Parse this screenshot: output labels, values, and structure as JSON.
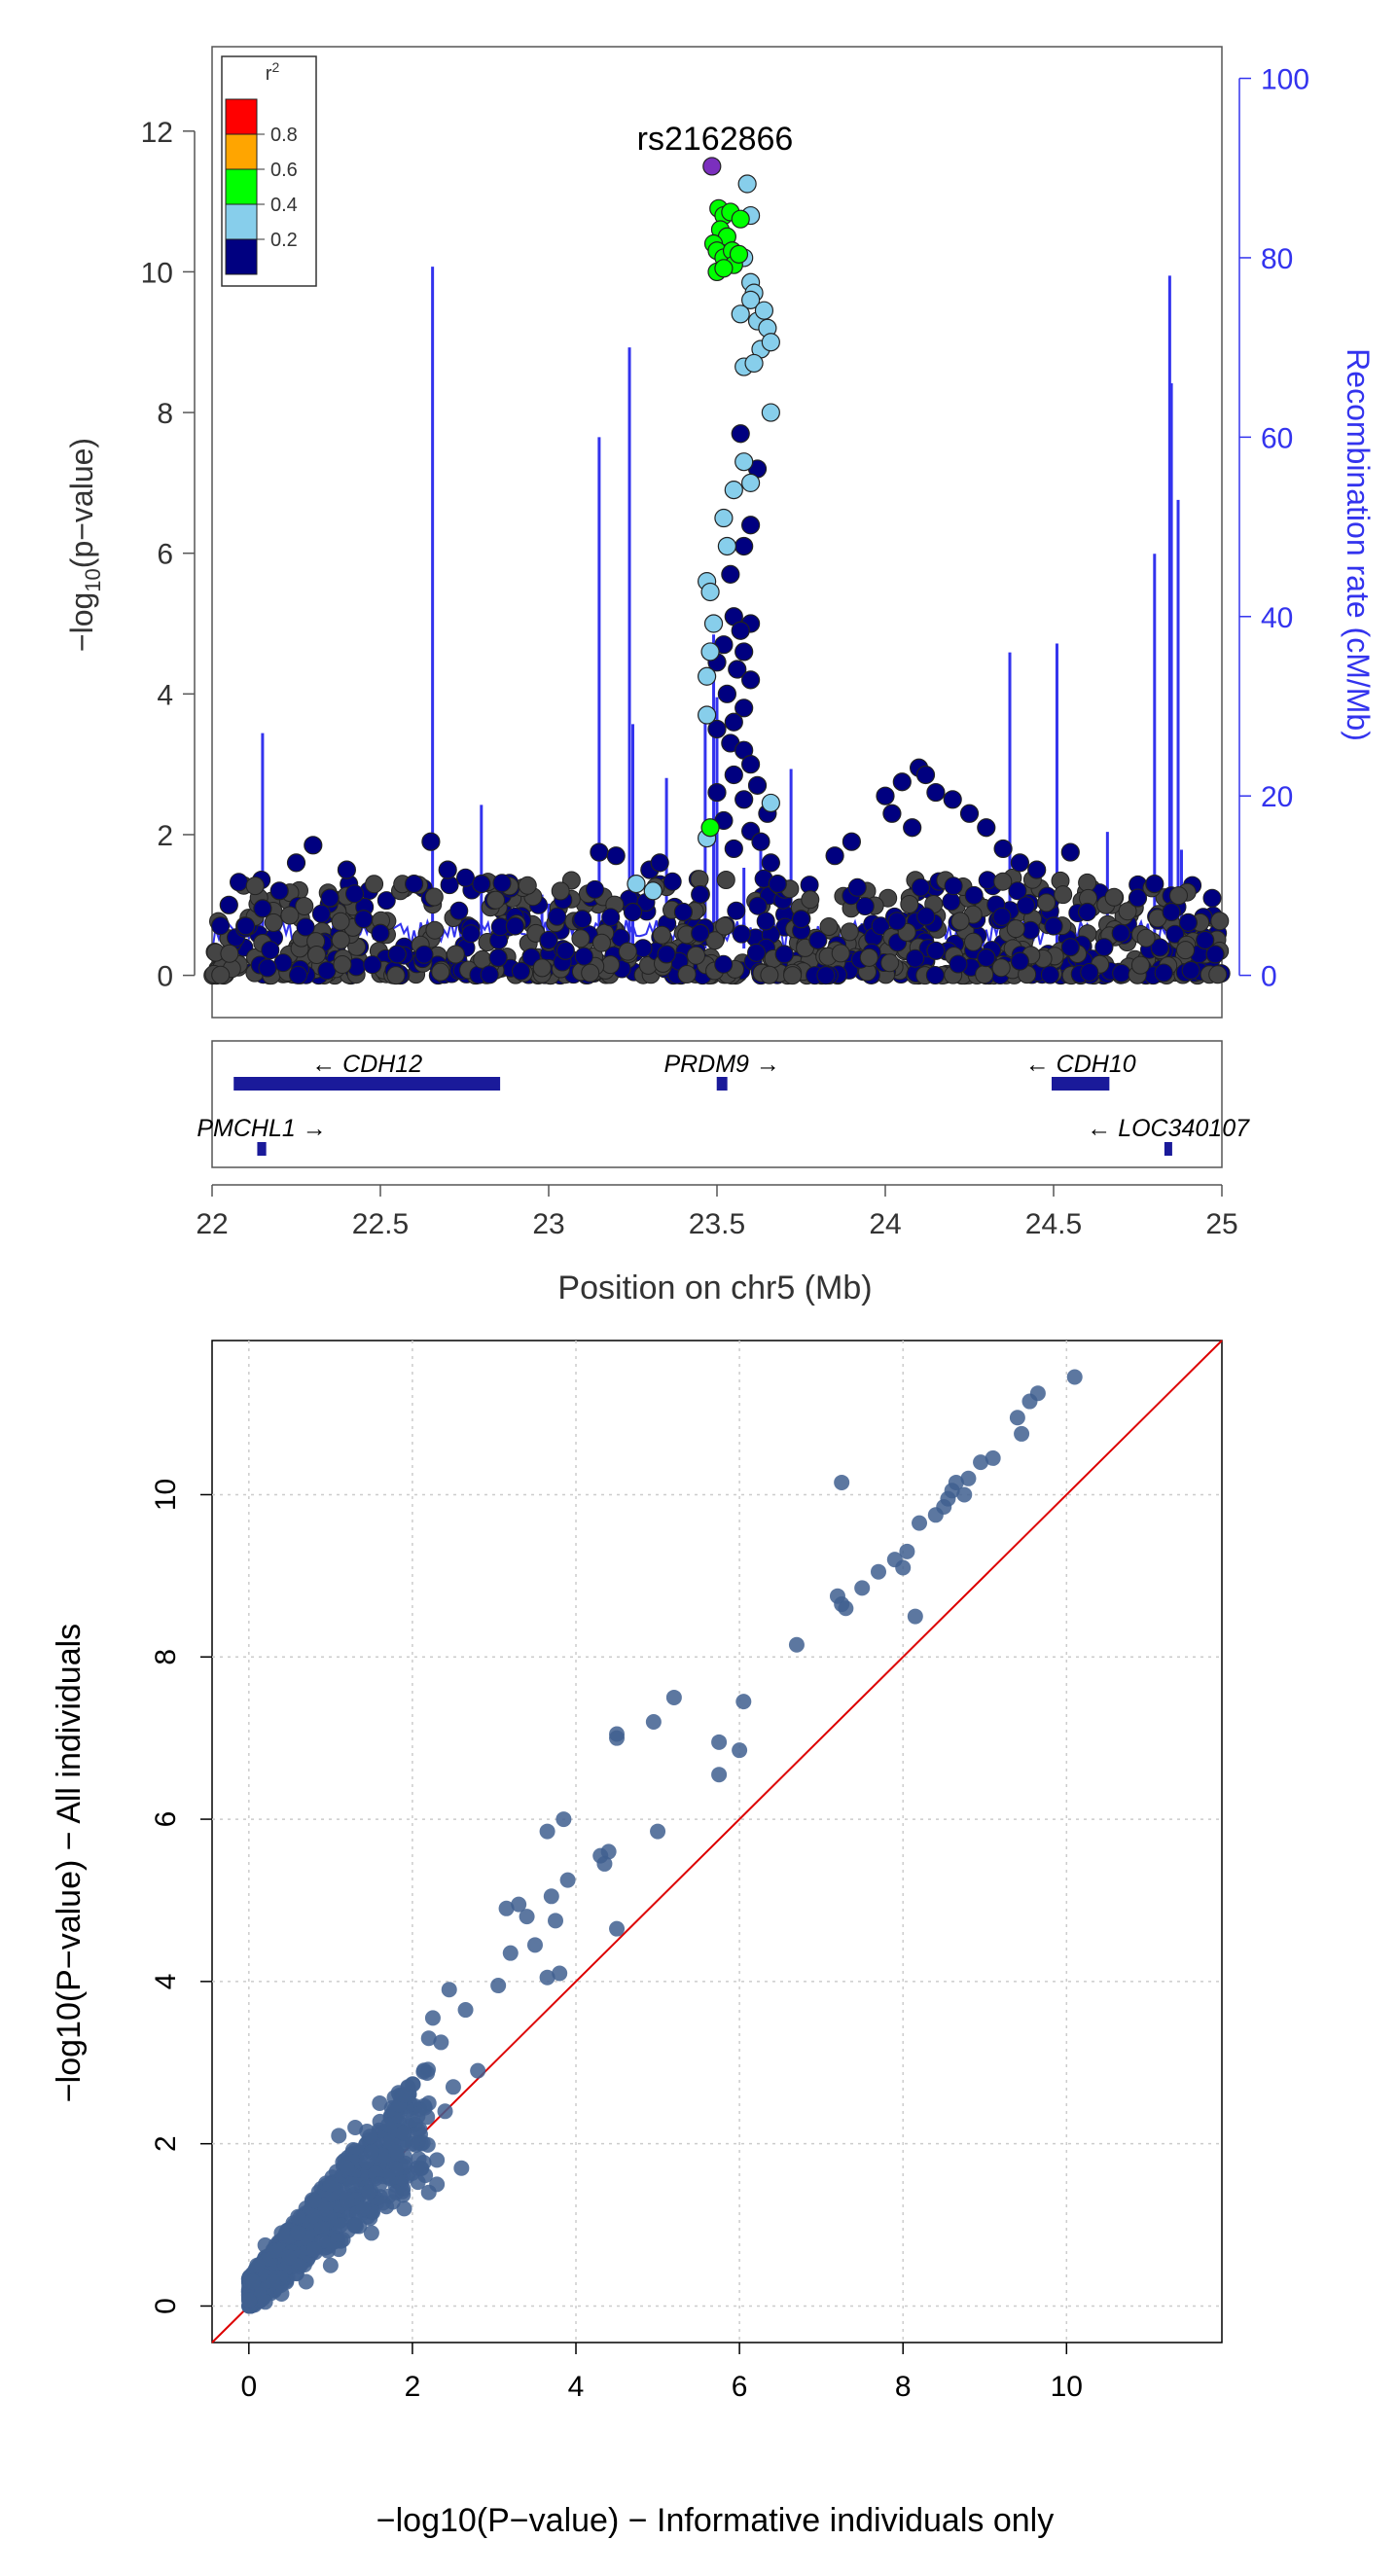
{
  "chart_data": [
    {
      "type": "scatter",
      "title": "",
      "annotation": "rs2162866",
      "xlabel": "Position on chr5 (Mb)",
      "ylabel_base": "−log",
      "ylabel_sub": "10",
      "ylabel_rest": "(p−value)",
      "y2label": "Recombination rate (cM/Mb)",
      "xlim": [
        22,
        25
      ],
      "ylim": [
        -0.6,
        13.2
      ],
      "y2lim": [
        0,
        100
      ],
      "xticks": [
        22,
        22.5,
        23,
        23.5,
        24,
        24.5,
        25
      ],
      "xtick_labels": [
        "22",
        "22.5",
        "23",
        "23.5",
        "24",
        "24.5",
        "25"
      ],
      "yticks": [
        0,
        2,
        4,
        6,
        8,
        10,
        12
      ],
      "ytick_labels": [
        "0",
        "2",
        "4",
        "6",
        "8",
        "10",
        "12"
      ],
      "y2ticks": [
        0,
        20,
        40,
        60,
        80,
        100
      ],
      "y2tick_labels": [
        "0",
        "20",
        "40",
        "60",
        "80",
        "100"
      ],
      "legend": {
        "title": "r",
        "title_sup": "2",
        "position": "top-left",
        "labels": [
          "0.8",
          "0.6",
          "0.4",
          "0.2"
        ],
        "colors": [
          "#ff0000",
          "#ffa500",
          "#00ff00",
          "#87ceeb",
          "#000080"
        ]
      },
      "colors": {
        "lead": "#7b2fbe",
        "r2_high": "#00ff00",
        "r2_mid": "#87ceeb",
        "r2_low": "#000080",
        "recomb": "#3333ee"
      },
      "lead_snp": {
        "x": 23.485,
        "y": 11.5
      },
      "series": [
        {
          "r2": "0.4-0.6",
          "points": [
            [
              23.505,
              10.9
            ],
            [
              23.52,
              10.8
            ],
            [
              23.54,
              10.85
            ],
            [
              23.51,
              10.6
            ],
            [
              23.53,
              10.5
            ],
            [
              23.49,
              10.4
            ],
            [
              23.5,
              10.3
            ],
            [
              23.52,
              10.2
            ],
            [
              23.545,
              10.3
            ],
            [
              23.55,
              10.1
            ],
            [
              23.5,
              10.0
            ],
            [
              23.52,
              10.05
            ],
            [
              23.565,
              10.25
            ],
            [
              23.57,
              10.75
            ],
            [
              23.48,
              2.1
            ]
          ]
        },
        {
          "r2": "0.2-0.4",
          "points": [
            [
              23.59,
              11.25
            ],
            [
              23.6,
              10.8
            ],
            [
              23.58,
              10.2
            ],
            [
              23.6,
              9.85
            ],
            [
              23.61,
              9.7
            ],
            [
              23.6,
              9.6
            ],
            [
              23.62,
              9.3
            ],
            [
              23.64,
              9.45
            ],
            [
              23.57,
              9.4
            ],
            [
              23.65,
              9.2
            ],
            [
              23.63,
              8.9
            ],
            [
              23.66,
              9.0
            ],
            [
              23.58,
              8.65
            ],
            [
              23.61,
              8.7
            ],
            [
              23.66,
              8.0
            ],
            [
              23.58,
              7.3
            ],
            [
              23.6,
              7.0
            ],
            [
              23.55,
              6.9
            ],
            [
              23.52,
              6.5
            ],
            [
              23.53,
              6.1
            ],
            [
              23.47,
              5.6
            ],
            [
              23.48,
              5.45
            ],
            [
              23.49,
              5.0
            ],
            [
              23.48,
              4.6
            ],
            [
              23.47,
              4.25
            ],
            [
              23.47,
              3.7
            ],
            [
              23.47,
              1.95
            ],
            [
              23.66,
              2.45
            ],
            [
              23.26,
              1.3
            ],
            [
              23.31,
              1.2
            ]
          ]
        },
        {
          "r2": "0-0.2",
          "points": [
            [
              23.57,
              7.7
            ],
            [
              23.62,
              7.2
            ],
            [
              23.6,
              6.4
            ],
            [
              23.58,
              6.1
            ],
            [
              23.54,
              5.7
            ],
            [
              23.55,
              5.1
            ],
            [
              23.6,
              5.0
            ],
            [
              23.57,
              4.9
            ],
            [
              23.58,
              4.6
            ],
            [
              23.52,
              4.7
            ],
            [
              23.5,
              4.45
            ],
            [
              23.56,
              4.35
            ],
            [
              23.6,
              4.2
            ],
            [
              23.53,
              4.0
            ],
            [
              23.58,
              3.8
            ],
            [
              23.55,
              3.6
            ],
            [
              23.5,
              3.5
            ],
            [
              23.54,
              3.3
            ],
            [
              23.58,
              3.2
            ],
            [
              23.6,
              3.0
            ],
            [
              23.55,
              2.85
            ],
            [
              23.62,
              2.7
            ],
            [
              23.5,
              2.6
            ],
            [
              23.58,
              2.5
            ],
            [
              23.65,
              2.3
            ],
            [
              23.52,
              2.2
            ],
            [
              23.6,
              2.05
            ],
            [
              23.63,
              1.9
            ],
            [
              23.55,
              1.8
            ],
            [
              23.66,
              1.6
            ],
            [
              23.68,
              1.3
            ],
            [
              23.45,
              1.15
            ],
            [
              23.4,
              0.9
            ],
            [
              23.45,
              0.6
            ],
            [
              24.0,
              2.55
            ],
            [
              24.05,
              2.75
            ],
            [
              24.1,
              2.95
            ],
            [
              24.12,
              2.85
            ],
            [
              24.15,
              2.6
            ],
            [
              24.2,
              2.5
            ],
            [
              24.25,
              2.3
            ],
            [
              24.3,
              2.1
            ],
            [
              24.02,
              2.3
            ],
            [
              24.08,
              2.1
            ],
            [
              23.9,
              1.9
            ],
            [
              23.85,
              1.7
            ],
            [
              24.35,
              1.8
            ],
            [
              24.4,
              1.6
            ],
            [
              24.45,
              1.5
            ],
            [
              24.55,
              1.75
            ],
            [
              22.3,
              1.85
            ],
            [
              22.4,
              1.5
            ],
            [
              22.25,
              1.6
            ],
            [
              22.2,
              1.2
            ],
            [
              22.35,
              1.1
            ],
            [
              22.6,
              1.3
            ],
            [
              22.7,
              1.5
            ],
            [
              22.65,
              1.9
            ],
            [
              22.8,
              1.3
            ],
            [
              22.15,
              0.95
            ],
            [
              22.1,
              0.7
            ],
            [
              22.05,
              1.0
            ],
            [
              23.15,
              1.75
            ],
            [
              23.2,
              1.7
            ],
            [
              23.3,
              1.5
            ],
            [
              23.33,
              1.6
            ],
            [
              24.75,
              1.1
            ],
            [
              24.8,
              1.3
            ],
            [
              24.85,
              0.9
            ],
            [
              24.9,
              0.75
            ],
            [
              24.95,
              0.5
            ],
            [
              24.98,
              0.3
            ],
            [
              24.7,
              0.6
            ],
            [
              24.65,
              0.4
            ],
            [
              22.45,
              0.8
            ],
            [
              22.5,
              0.6
            ],
            [
              22.9,
              0.7
            ],
            [
              23.0,
              0.5
            ],
            [
              23.1,
              0.8
            ],
            [
              23.25,
              0.9
            ],
            [
              23.75,
              0.8
            ],
            [
              23.8,
              0.5
            ],
            [
              24.6,
              0.9
            ],
            [
              24.5,
              0.7
            ],
            [
              22.55,
              0.3
            ],
            [
              22.85,
              0.25
            ],
            [
              23.05,
              0.35
            ],
            [
              23.35,
              0.3
            ],
            [
              23.7,
              0.3
            ],
            [
              24.15,
              0.35
            ],
            [
              24.3,
              0.25
            ],
            [
              24.4,
              0.2
            ],
            [
              24.55,
              0.4
            ]
          ]
        }
      ],
      "recomb_peaks": [
        [
          22.15,
          27
        ],
        [
          22.655,
          79
        ],
        [
          22.8,
          19
        ],
        [
          22.98,
          9
        ],
        [
          23.0,
          8
        ],
        [
          23.15,
          60
        ],
        [
          23.24,
          70
        ],
        [
          23.25,
          28
        ],
        [
          23.35,
          22
        ],
        [
          23.465,
          30
        ],
        [
          23.49,
          38
        ],
        [
          23.5,
          31
        ],
        [
          23.58,
          12
        ],
        [
          23.63,
          15
        ],
        [
          23.72,
          23
        ],
        [
          24.37,
          36
        ],
        [
          24.51,
          37
        ],
        [
          24.66,
          16
        ],
        [
          24.8,
          47
        ],
        [
          24.845,
          78
        ],
        [
          24.85,
          66
        ],
        [
          24.87,
          53
        ],
        [
          24.88,
          14
        ]
      ],
      "genes": [
        {
          "name": "CDH12",
          "arrow_left": "←",
          "arrow_right": "",
          "start": 22.07,
          "end": 22.85,
          "row": 0
        },
        {
          "name": "PRDM9",
          "arrow_left": "",
          "arrow_right": "→",
          "start": 23.505,
          "end": 23.525,
          "row": 0
        },
        {
          "name": "CDH10",
          "arrow_left": "←",
          "arrow_right": "",
          "start": 24.5,
          "end": 24.66,
          "row": 0
        },
        {
          "name": "PMCHL1",
          "arrow_left": "",
          "arrow_right": "→",
          "start": 22.14,
          "end": 22.155,
          "row": 1
        },
        {
          "name": "LOC340107",
          "arrow_left": "←",
          "arrow_right": "",
          "start": 24.835,
          "end": 24.845,
          "row": 1
        }
      ]
    },
    {
      "type": "scatter",
      "title": "",
      "xlabel": "−log10(P−value) − Informative individuals only",
      "ylabel": "−log10(P−value) − All individuals",
      "xlim": [
        -0.45,
        11.9
      ],
      "ylim": [
        -0.45,
        11.9
      ],
      "xticks": [
        0,
        2,
        4,
        6,
        8,
        10
      ],
      "xtick_labels": [
        "0",
        "2",
        "4",
        "6",
        "8",
        "10"
      ],
      "yticks": [
        0,
        2,
        4,
        6,
        8,
        10
      ],
      "ytick_labels": [
        "0",
        "2",
        "4",
        "6",
        "8",
        "10"
      ],
      "grid": true,
      "reference_line": {
        "slope": 1,
        "intercept": 0,
        "color": "#dd0000"
      },
      "point_color": "#3f5f8f",
      "points": [
        [
          10.1,
          11.45
        ],
        [
          9.65,
          11.25
        ],
        [
          9.55,
          11.15
        ],
        [
          9.4,
          10.95
        ],
        [
          9.45,
          10.75
        ],
        [
          9.1,
          10.45
        ],
        [
          8.95,
          10.4
        ],
        [
          8.8,
          10.2
        ],
        [
          8.65,
          10.15
        ],
        [
          8.6,
          10.05
        ],
        [
          8.75,
          10.0
        ],
        [
          8.5,
          9.85
        ],
        [
          8.4,
          9.75
        ],
        [
          8.55,
          9.95
        ],
        [
          8.2,
          9.65
        ],
        [
          8.05,
          9.3
        ],
        [
          7.9,
          9.2
        ],
        [
          8.0,
          9.1
        ],
        [
          7.7,
          9.05
        ],
        [
          7.5,
          8.85
        ],
        [
          7.2,
          8.75
        ],
        [
          7.3,
          8.6
        ],
        [
          7.25,
          8.65
        ],
        [
          8.15,
          8.5
        ],
        [
          7.25,
          10.15
        ],
        [
          6.7,
          8.15
        ],
        [
          6.05,
          7.45
        ],
        [
          5.2,
          7.5
        ],
        [
          4.95,
          7.2
        ],
        [
          4.5,
          7.05
        ],
        [
          4.5,
          7.0
        ],
        [
          5.75,
          6.95
        ],
        [
          6.0,
          6.85
        ],
        [
          5.75,
          6.55
        ],
        [
          3.85,
          6.0
        ],
        [
          3.65,
          5.85
        ],
        [
          5.0,
          5.85
        ],
        [
          4.4,
          5.6
        ],
        [
          4.3,
          5.55
        ],
        [
          4.35,
          5.45
        ],
        [
          3.9,
          5.25
        ],
        [
          3.7,
          5.05
        ],
        [
          3.3,
          4.95
        ],
        [
          3.15,
          4.9
        ],
        [
          3.4,
          4.8
        ],
        [
          3.75,
          4.75
        ],
        [
          4.5,
          4.65
        ],
        [
          3.5,
          4.45
        ],
        [
          3.2,
          4.35
        ],
        [
          3.8,
          4.1
        ],
        [
          3.65,
          4.05
        ],
        [
          3.05,
          3.95
        ],
        [
          2.45,
          3.9
        ],
        [
          2.65,
          3.65
        ],
        [
          2.25,
          3.55
        ],
        [
          2.2,
          3.3
        ],
        [
          2.35,
          3.25
        ],
        [
          2.8,
          2.9
        ],
        [
          2.5,
          2.7
        ],
        [
          2.2,
          2.5
        ],
        [
          2.4,
          2.4
        ],
        [
          1.9,
          2.6
        ],
        [
          2.0,
          2.3
        ],
        [
          1.6,
          2.5
        ],
        [
          1.3,
          2.2
        ],
        [
          1.1,
          2.1
        ],
        [
          1.5,
          1.9
        ],
        [
          1.2,
          1.7
        ],
        [
          1.7,
          1.6
        ],
        [
          2.3,
          1.8
        ],
        [
          1.0,
          1.5
        ],
        [
          0.8,
          1.3
        ],
        [
          0.6,
          1.1
        ],
        [
          0.4,
          0.9
        ],
        [
          0.2,
          0.75
        ],
        [
          0.1,
          0.5
        ],
        [
          0.05,
          0.3
        ],
        [
          0.5,
          0.6
        ],
        [
          0.9,
          0.8
        ],
        [
          1.3,
          1.0
        ],
        [
          1.8,
          1.4
        ],
        [
          2.3,
          1.5
        ],
        [
          2.6,
          1.7
        ],
        [
          2.2,
          1.4
        ],
        [
          1.9,
          1.2
        ],
        [
          1.5,
          0.9
        ],
        [
          1.0,
          0.5
        ],
        [
          0.7,
          0.3
        ],
        [
          0.4,
          0.15
        ],
        [
          0.2,
          0.05
        ],
        [
          0.6,
          0.9
        ],
        [
          1.2,
          1.3
        ],
        [
          1.6,
          1.5
        ],
        [
          0.3,
          0.3
        ],
        [
          0.8,
          0.7
        ],
        [
          1.4,
          1.2
        ],
        [
          2.0,
          2.0
        ],
        [
          1.8,
          1.9
        ],
        [
          2.1,
          1.7
        ],
        [
          1.1,
          0.7
        ]
      ]
    }
  ]
}
